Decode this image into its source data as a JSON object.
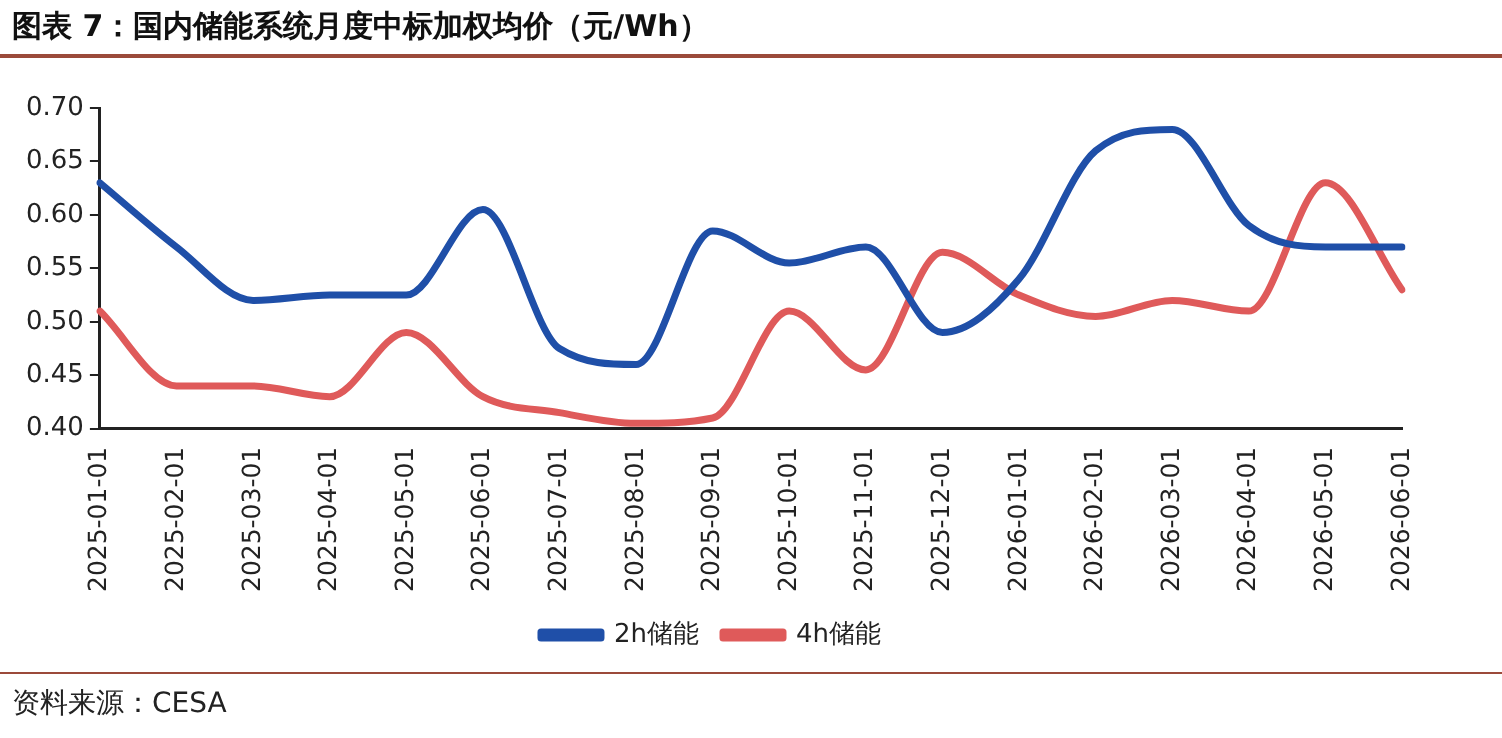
{
  "chart_data": {
    "type": "line",
    "title": "图表 7：国内储能系统月度中标加权均价（元/Wh）",
    "categories": [
      "2025-01-01",
      "2025-02-01",
      "2025-03-01",
      "2025-04-01",
      "2025-05-01",
      "2025-06-01",
      "2025-07-01",
      "2025-08-01",
      "2025-09-01",
      "2025-10-01",
      "2025-11-01",
      "2025-12-01",
      "2026-01-01",
      "2026-02-01",
      "2026-03-01",
      "2026-04-01",
      "2026-05-01",
      "2026-06-01"
    ],
    "series": [
      {
        "name": "2h储能",
        "color": "#1f4fa8",
        "values": [
          0.63,
          0.57,
          0.52,
          0.525,
          0.525,
          0.605,
          0.475,
          0.46,
          0.585,
          0.555,
          0.57,
          0.49,
          0.54,
          0.66,
          0.68,
          0.59,
          0.57,
          0.57
        ]
      },
      {
        "name": "4h储能",
        "color": "#df5a5a",
        "values": [
          0.51,
          0.44,
          0.44,
          0.43,
          0.49,
          0.43,
          0.415,
          0.405,
          0.41,
          0.51,
          0.455,
          0.565,
          0.525,
          0.505,
          0.52,
          0.51,
          0.63,
          0.53
        ]
      }
    ],
    "ylim": [
      0.4,
      0.7
    ],
    "yticks": [
      {
        "value": 0.4,
        "label": "0.40"
      },
      0.45,
      {
        "value": 0.5,
        "label": "0.50"
      },
      0.55,
      {
        "value": 0.6,
        "label": "0.60"
      },
      0.65,
      {
        "value": 0.7,
        "label": "0.70"
      }
    ],
    "grid": false,
    "legend": "bottom",
    "marker": "none",
    "line_style": "solid",
    "annotations": [
      "资料来源：CESA"
    ]
  }
}
